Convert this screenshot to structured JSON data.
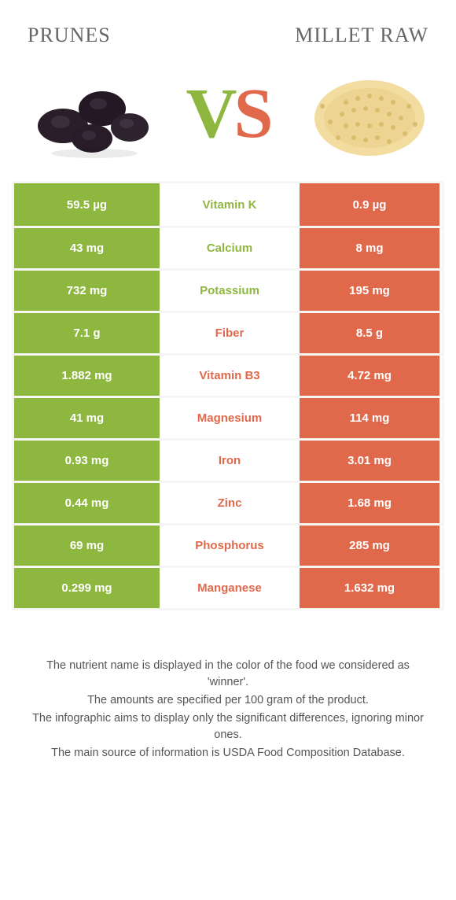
{
  "colors": {
    "green": "#8eb73f",
    "orange": "#e0694c",
    "row_border": "#f6f6f6",
    "white": "#ffffff"
  },
  "header": {
    "left_title": "Prunes",
    "right_title": "Millet raw",
    "vs_left_char": "V",
    "vs_right_char": "S"
  },
  "rows": [
    {
      "left": "59.5 µg",
      "label": "Vitamin K",
      "label_color": "#8eb73f",
      "right": "0.9 µg"
    },
    {
      "left": "43 mg",
      "label": "Calcium",
      "label_color": "#8eb73f",
      "right": "8 mg"
    },
    {
      "left": "732 mg",
      "label": "Potassium",
      "label_color": "#8eb73f",
      "right": "195 mg"
    },
    {
      "left": "7.1 g",
      "label": "Fiber",
      "label_color": "#e0694c",
      "right": "8.5 g"
    },
    {
      "left": "1.882 mg",
      "label": "Vitamin B3",
      "label_color": "#e0694c",
      "right": "4.72 mg"
    },
    {
      "left": "41 mg",
      "label": "Magnesium",
      "label_color": "#e0694c",
      "right": "114 mg"
    },
    {
      "left": "0.93 mg",
      "label": "Iron",
      "label_color": "#e0694c",
      "right": "3.01 mg"
    },
    {
      "left": "0.44 mg",
      "label": "Zinc",
      "label_color": "#e0694c",
      "right": "1.68 mg"
    },
    {
      "left": "69 mg",
      "label": "Phosphorus",
      "label_color": "#e0694c",
      "right": "285 mg"
    },
    {
      "left": "0.299 mg",
      "label": "Manganese",
      "label_color": "#e0694c",
      "right": "1.632 mg"
    }
  ],
  "footnotes": [
    "The nutrient name is displayed in the color of the food we considered as 'winner'.",
    "The amounts are specified per 100 gram of the product.",
    "The infographic aims to display only the significant differences, ignoring minor ones.",
    "The main source of information is USDA Food Composition Database."
  ]
}
